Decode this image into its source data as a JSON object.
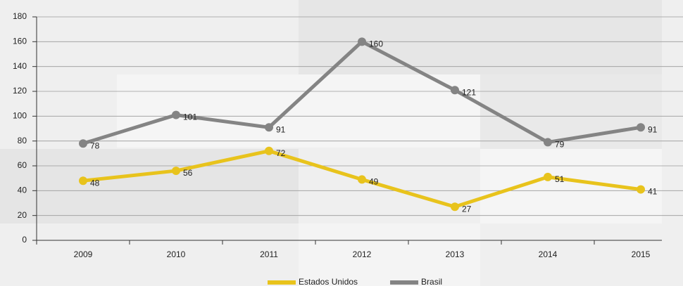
{
  "chart_data": {
    "type": "line",
    "categories": [
      "2009",
      "2010",
      "2011",
      "2012",
      "2013",
      "2014",
      "2015"
    ],
    "series": [
      {
        "name": "Estados Unidos",
        "color": "#e8c31c",
        "values": [
          48,
          56,
          72,
          49,
          27,
          51,
          41
        ]
      },
      {
        "name": "Brasil",
        "color": "#848484",
        "values": [
          78,
          101,
          91,
          160,
          121,
          79,
          91
        ]
      }
    ],
    "ylim": [
      0,
      180
    ],
    "yticks": [
      0,
      20,
      40,
      60,
      80,
      100,
      120,
      140,
      160,
      180
    ],
    "grid": true
  }
}
